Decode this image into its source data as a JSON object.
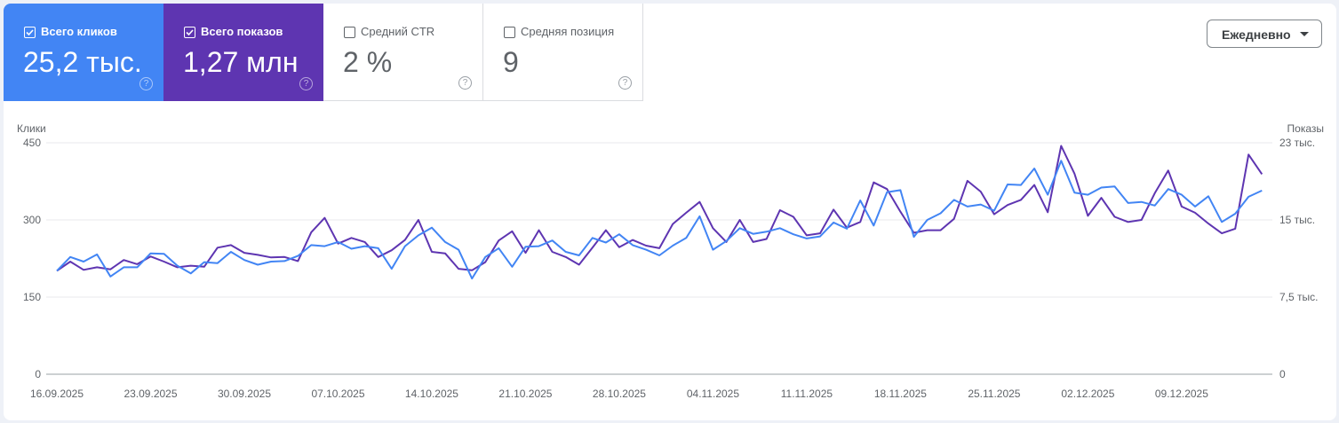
{
  "metrics": [
    {
      "label": "Всего кликов",
      "value": "25,2 тыс.",
      "checked": true,
      "color": "#4285f4"
    },
    {
      "label": "Всего показов",
      "value": "1,27 млн",
      "checked": true,
      "color": "#5e35b1"
    },
    {
      "label": "Средний CTR",
      "value": "2 %",
      "checked": false
    },
    {
      "label": "Средняя позиция",
      "value": "9",
      "checked": false
    }
  ],
  "help_icon": "question-circle-icon",
  "period_dropdown": {
    "selected": "Ежедневно"
  },
  "chart_data": {
    "type": "line",
    "x_start": "16.09.2025",
    "x_end": "15.12.2025",
    "x_tick_labels": [
      "16.09.2025",
      "23.09.2025",
      "30.09.2025",
      "07.10.2025",
      "14.10.2025",
      "21.10.2025",
      "28.10.2025",
      "04.11.2025",
      "11.11.2025",
      "18.11.2025",
      "25.11.2025",
      "02.12.2025",
      "09.12.2025"
    ],
    "y_left": {
      "label": "Клики",
      "ticks": [
        "0",
        "150",
        "300",
        "450"
      ],
      "range": [
        0,
        450
      ]
    },
    "y_right": {
      "label": "Показы",
      "ticks": [
        "0",
        "7,5 тыс.",
        "15 тыс.",
        "23 тыс."
      ],
      "range": [
        0,
        22500
      ]
    },
    "grid": true,
    "series": [
      {
        "name": "Клики",
        "axis": "left",
        "color": "#4285f4",
        "values": [
          201,
          228,
          219,
          233,
          190,
          208,
          208,
          235,
          234,
          211,
          196,
          218,
          216,
          238,
          222,
          213,
          219,
          220,
          230,
          251,
          249,
          257,
          244,
          249,
          245,
          205,
          249,
          270,
          285,
          257,
          242,
          186,
          228,
          245,
          209,
          248,
          249,
          260,
          238,
          231,
          265,
          256,
          272,
          251,
          242,
          231,
          250,
          265,
          307,
          242,
          259,
          284,
          273,
          277,
          284,
          272,
          264,
          268,
          295,
          283,
          338,
          289,
          354,
          358,
          267,
          300,
          313,
          339,
          326,
          330,
          318,
          369,
          368,
          400,
          349,
          415,
          353,
          349,
          363,
          365,
          333,
          335,
          328,
          360,
          349,
          326,
          346,
          296,
          312,
          345,
          357
        ]
      },
      {
        "name": "Показы",
        "axis": "right",
        "color": "#5e35b1",
        "values": [
          10050,
          10950,
          10150,
          10400,
          10200,
          11100,
          10700,
          11450,
          10950,
          10400,
          10550,
          10450,
          12300,
          12550,
          11800,
          11600,
          11350,
          11400,
          11000,
          13800,
          15200,
          12700,
          13250,
          12850,
          11400,
          12050,
          13050,
          15000,
          11900,
          11750,
          10250,
          10100,
          10900,
          13000,
          13900,
          11800,
          14000,
          11900,
          11400,
          10650,
          12300,
          14000,
          12350,
          13050,
          12500,
          12250,
          14600,
          15700,
          16750,
          14200,
          12850,
          15000,
          12850,
          13150,
          15950,
          15300,
          13500,
          13700,
          16000,
          14250,
          14800,
          18650,
          18000,
          15800,
          13750,
          14000,
          14000,
          15100,
          18800,
          17750,
          15550,
          16450,
          16950,
          18400,
          15750,
          22200,
          19500,
          15400,
          17150,
          15300,
          14800,
          15000,
          17600,
          19800,
          16300,
          15700,
          14650,
          13700,
          14150,
          21350,
          19450
        ]
      }
    ]
  }
}
